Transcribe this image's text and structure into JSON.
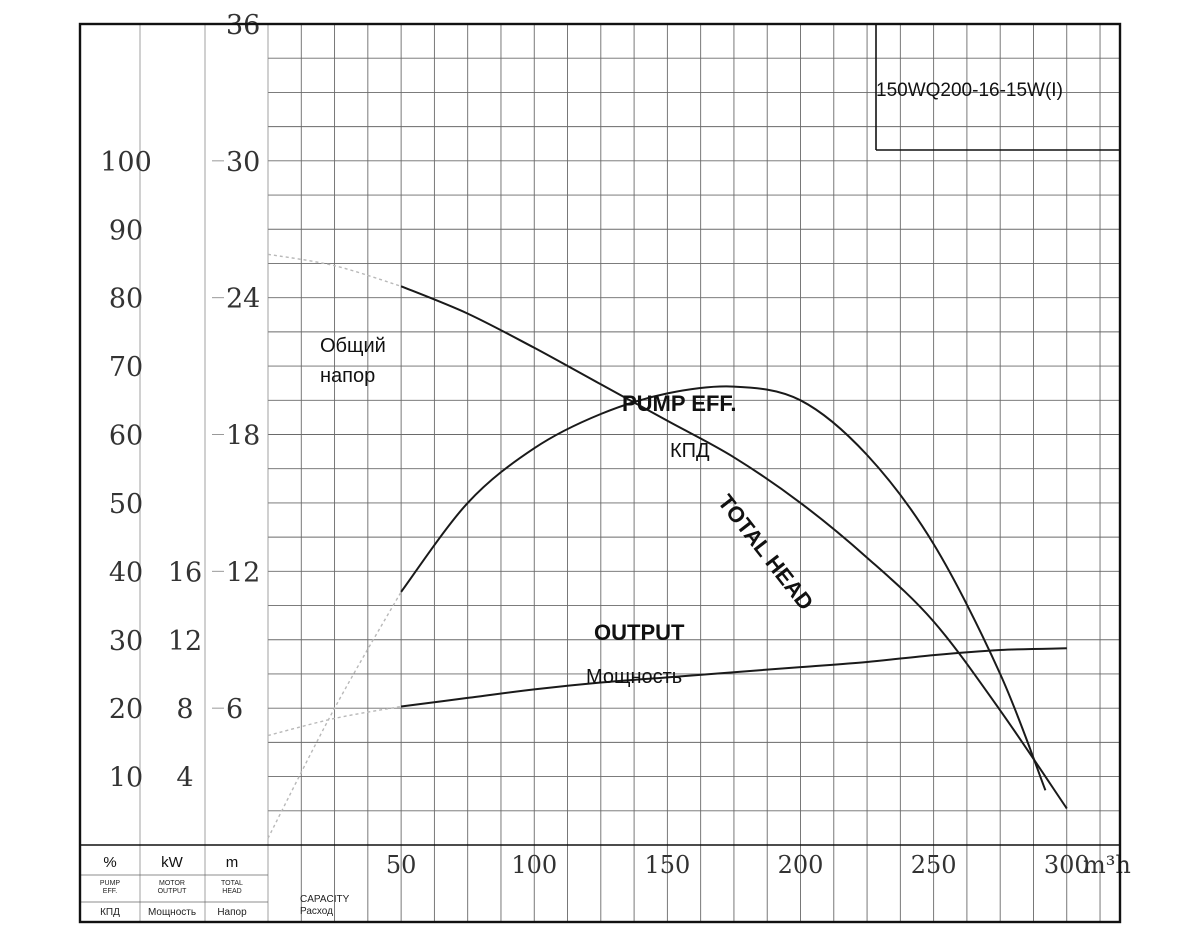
{
  "chart_data": {
    "type": "line",
    "model": "150WQ200-16-15W(I)",
    "xunit": "m³h",
    "xticks": [
      50,
      100,
      150,
      200,
      250,
      300
    ],
    "xlim": [
      0,
      320
    ],
    "grid": true,
    "axes": {
      "eff": {
        "unit": "%",
        "name_en_1": "PUMP",
        "name_en_2": "EFF.",
        "name_ru": "КПД",
        "ticks": [
          10,
          20,
          30,
          40,
          50,
          60,
          70,
          80,
          90,
          100
        ],
        "range": [
          0,
          120
        ]
      },
      "power": {
        "unit": "kW",
        "name_en_1": "MOTOR",
        "name_en_2": "OUTPUT",
        "name_ru": "Мощность",
        "ticks": [
          4,
          8,
          12,
          16
        ],
        "range": [
          0,
          48
        ]
      },
      "head": {
        "unit": "m",
        "name_en_1": "TOTAL",
        "name_en_2": "HEAD",
        "name_ru": "Напор",
        "ticks": [
          6,
          12,
          18,
          24,
          30,
          36
        ],
        "range": [
          0,
          36
        ]
      }
    },
    "xaxis_label_en": "CAPACITY",
    "xaxis_label_ru": "Расход",
    "series": [
      {
        "name": "TOTAL HEAD",
        "name_ru": "Общий напор",
        "axis": "head",
        "x": [
          0,
          25,
          50,
          75,
          100,
          125,
          150,
          175,
          200,
          225,
          250,
          275,
          300
        ],
        "y": [
          25.9,
          25.4,
          24.5,
          23.3,
          21.8,
          20.2,
          18.6,
          17.0,
          15.0,
          12.6,
          9.8,
          5.9,
          1.6
        ],
        "dashed_until": 50
      },
      {
        "name": "PUMP EFF.",
        "name_ru": "КПД",
        "axis": "eff",
        "x": [
          0,
          25,
          50,
          75,
          100,
          125,
          150,
          175,
          200,
          225,
          250,
          275,
          292
        ],
        "y": [
          1,
          20,
          37,
          50,
          58,
          63,
          66,
          67,
          65,
          57,
          44,
          25,
          8
        ],
        "dashed_until": 50
      },
      {
        "name": "OUTPUT",
        "name_ru": "Мощность",
        "axis": "power",
        "x": [
          0,
          25,
          50,
          75,
          100,
          125,
          150,
          175,
          200,
          225,
          250,
          275,
          300
        ],
        "y": [
          6.4,
          7.4,
          8.1,
          8.6,
          9.1,
          9.5,
          9.8,
          10.1,
          10.4,
          10.7,
          11.1,
          11.4,
          11.5
        ],
        "dashed_until": 50
      }
    ]
  }
}
